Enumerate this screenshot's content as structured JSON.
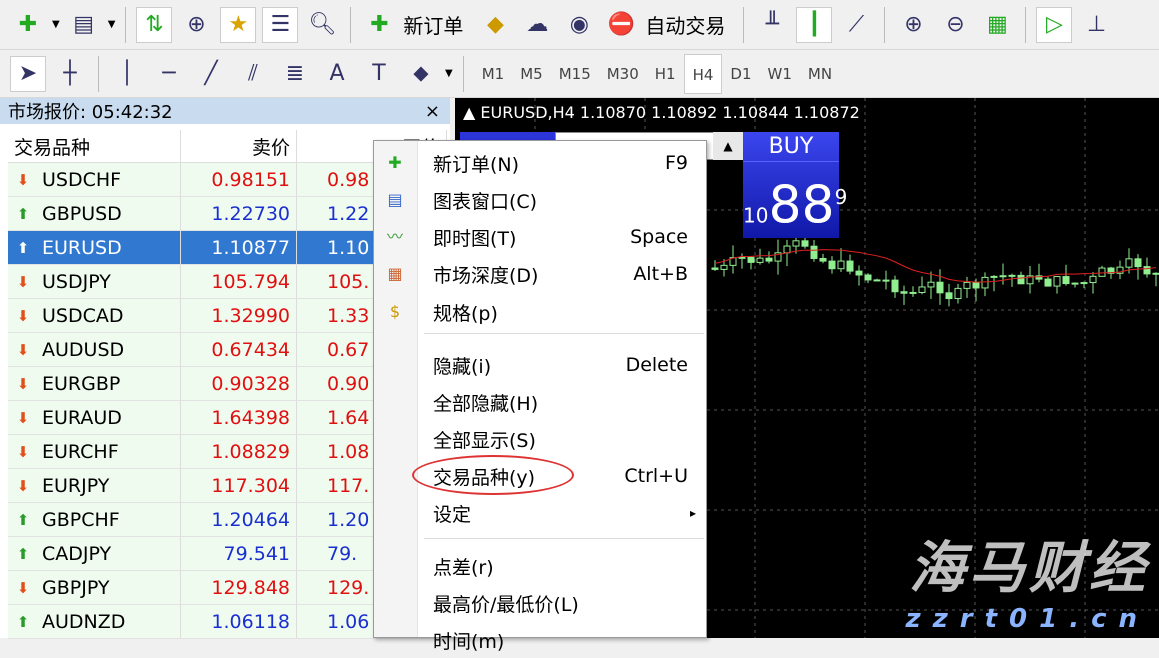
{
  "toolbar1": {
    "items": [
      "new-chart",
      "profiles",
      "market-watch",
      "crosshair-nav",
      "navigator",
      "data-window",
      "strategy-tester"
    ],
    "new_order": "新订单",
    "auto_trading": "自动交易"
  },
  "toolbar2": {
    "timeframes": [
      "M1",
      "M5",
      "M15",
      "M30",
      "H1",
      "H4",
      "D1",
      "W1",
      "MN"
    ],
    "active_timeframe": "H4"
  },
  "market_watch": {
    "title": "市场报价: 05:42:32",
    "close": "×",
    "columns": [
      "交易品种",
      "卖价",
      "买价"
    ],
    "rows": [
      {
        "symbol": "USDCHF",
        "bid": "0.98151",
        "ask": "0.98",
        "dir": "down"
      },
      {
        "symbol": "GBPUSD",
        "bid": "1.22730",
        "ask": "1.22",
        "dir": "up"
      },
      {
        "symbol": "EURUSD",
        "bid": "1.10877",
        "ask": "1.10",
        "dir": "up",
        "selected": true
      },
      {
        "symbol": "USDJPY",
        "bid": "105.794",
        "ask": "105.",
        "dir": "down"
      },
      {
        "symbol": "USDCAD",
        "bid": "1.32990",
        "ask": "1.33",
        "dir": "down"
      },
      {
        "symbol": "AUDUSD",
        "bid": "0.67434",
        "ask": "0.67",
        "dir": "down"
      },
      {
        "symbol": "EURGBP",
        "bid": "0.90328",
        "ask": "0.90",
        "dir": "down"
      },
      {
        "symbol": "EURAUD",
        "bid": "1.64398",
        "ask": "1.64",
        "dir": "down"
      },
      {
        "symbol": "EURCHF",
        "bid": "1.08829",
        "ask": "1.08",
        "dir": "down"
      },
      {
        "symbol": "EURJPY",
        "bid": "117.304",
        "ask": "117.",
        "dir": "down"
      },
      {
        "symbol": "GBPCHF",
        "bid": "1.20464",
        "ask": "1.20",
        "dir": "up"
      },
      {
        "symbol": "CADJPY",
        "bid": "79.541",
        "ask": "79.",
        "dir": "up"
      },
      {
        "symbol": "GBPJPY",
        "bid": "129.848",
        "ask": "129.",
        "dir": "down"
      },
      {
        "symbol": "AUDNZD",
        "bid": "1.06118",
        "ask": "1.06",
        "dir": "up"
      }
    ]
  },
  "chart": {
    "title": "EURUSD,H4  1.10870 1.10892 1.10844 1.10872",
    "buy_label": "BUY",
    "buy_price_small": "10",
    "buy_price_big": "88",
    "buy_price_sup": "9"
  },
  "context_menu": {
    "items": [
      {
        "label": "新订单(N)",
        "shortcut": "F9",
        "icon": "new-order"
      },
      {
        "label": "图表窗口(C)",
        "shortcut": "",
        "icon": "chart-window"
      },
      {
        "label": "即时图(T)",
        "shortcut": "Space",
        "icon": "tick-chart"
      },
      {
        "label": "市场深度(D)",
        "shortcut": "Alt+B",
        "icon": "depth"
      },
      {
        "label": "规格(p)",
        "shortcut": "",
        "icon": "specification"
      },
      {
        "label": "隐藏(i)",
        "shortcut": "Delete"
      },
      {
        "label": "全部隐藏(H)",
        "shortcut": ""
      },
      {
        "label": "全部显示(S)",
        "shortcut": ""
      },
      {
        "label": "交易品种(y)",
        "shortcut": "Ctrl+U",
        "highlighted": true
      },
      {
        "label": "设定",
        "shortcut": "▸"
      },
      {
        "label": "点差(r)",
        "shortcut": ""
      },
      {
        "label": "最高价/最低价(L)",
        "shortcut": ""
      },
      {
        "label": "时间(m)",
        "shortcut": ""
      }
    ]
  },
  "watermark": {
    "text": "海马财经",
    "url": "zzrt01.cn"
  },
  "colors": {
    "up": "#1a2fd0",
    "down": "#e01010",
    "candle": "#90ee90",
    "ma": "#e02020",
    "selected": "#3078d0"
  }
}
